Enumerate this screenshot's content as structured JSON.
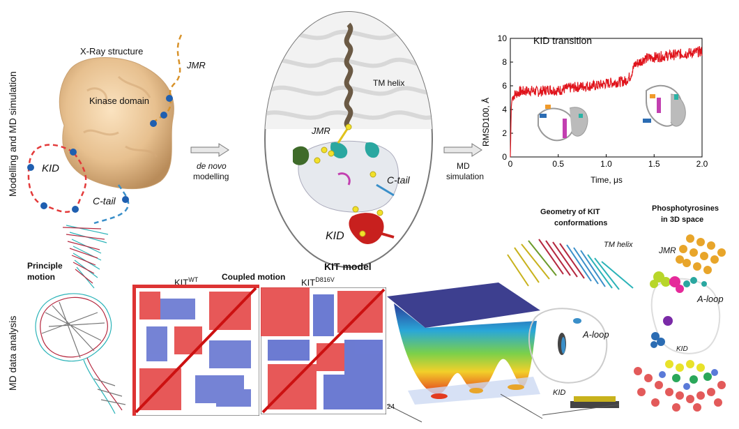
{
  "side_labels": {
    "top": "Modelling and MD simulation",
    "bottom": "MD data analysis"
  },
  "xray": {
    "title": "X-Ray structure",
    "kinase": "Kinase domain",
    "jmr": "JMR",
    "kid": "KID",
    "ctail": "C-tail"
  },
  "arrow1": {
    "line1": "de novo",
    "line2": "modelling"
  },
  "model": {
    "tm": "TM helix",
    "jmr": "JMR",
    "ctail": "C-tail",
    "kid": "KID",
    "caption": "KIT model"
  },
  "arrow2": {
    "line1": "MD",
    "line2": "simulation"
  },
  "chart_data": {
    "type": "line",
    "title": "KID transition",
    "xlabel": "Time, μs",
    "ylabel": "RMSD100, Å",
    "xlim": [
      0,
      2.0
    ],
    "ylim": [
      0,
      10
    ],
    "xticks": [
      "0",
      "0.5",
      "1.0",
      "1.5",
      "2.0"
    ],
    "yticks": [
      "0",
      "2",
      "4",
      "6",
      "8",
      "10"
    ],
    "series": [
      {
        "color": "#e0141c",
        "x": [
          0,
          0.01,
          0.02,
          0.05,
          0.1,
          0.2,
          0.3,
          0.4,
          0.5,
          0.6,
          0.7,
          0.8,
          0.9,
          1.0,
          1.1,
          1.2,
          1.25,
          1.3,
          1.35,
          1.4,
          1.5,
          1.6,
          1.7,
          1.8,
          1.9,
          2.0
        ],
        "y": [
          0,
          4.2,
          5.0,
          5.3,
          5.5,
          5.6,
          5.5,
          5.7,
          5.6,
          5.8,
          5.9,
          6.0,
          6.0,
          6.2,
          6.3,
          6.4,
          6.8,
          7.8,
          8.0,
          8.3,
          8.4,
          8.5,
          8.6,
          8.7,
          8.8,
          8.9
        ]
      }
    ]
  },
  "principle": {
    "line1": "Principle",
    "line2": "motion"
  },
  "coupled": {
    "title": "Coupled motion",
    "wt_main": "KIT",
    "wt_sup": "WT",
    "mut_main": "KIT",
    "mut_sup": "D816V"
  },
  "landscape": {
    "tick": "24"
  },
  "geometry": {
    "title1": "Geometry of KIT",
    "title2": "conformations",
    "tm": "TM helix",
    "aloop": "A-loop",
    "kid": "KID"
  },
  "phospho": {
    "title1": "Phosphotyrosines",
    "title2": "in 3D space",
    "jmr": "JMR",
    "aloop": "A-loop",
    "kid": "KID"
  }
}
